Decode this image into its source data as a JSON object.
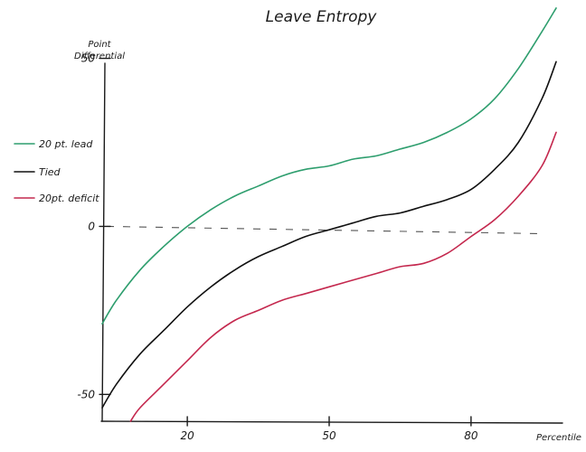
{
  "chart_data": {
    "type": "line",
    "title": "Leave Entropy",
    "xlabel": "Percentile",
    "ylabel": "Point Differential",
    "ylabel_lines": [
      "Point",
      "Differential"
    ],
    "xlim": [
      2,
      98
    ],
    "ylim": [
      -58,
      62
    ],
    "x_ticks": [
      20,
      50,
      80
    ],
    "y_ticks": [
      50,
      0,
      -50
    ],
    "zero_reference": {
      "value": 0,
      "style": "dashed"
    },
    "legend_position": "left",
    "series": [
      {
        "name": "20 pt. lead",
        "color": "#2e9e6e",
        "x": [
          2,
          5,
          10,
          15,
          20,
          25,
          30,
          35,
          40,
          45,
          50,
          55,
          60,
          65,
          70,
          75,
          80,
          85,
          90,
          95,
          98
        ],
        "y": [
          -29,
          -22,
          -13,
          -6,
          0,
          5,
          9,
          12,
          15,
          17,
          18,
          20,
          21,
          23,
          25,
          28,
          32,
          38,
          47,
          58,
          65
        ]
      },
      {
        "name": "Tied",
        "color": "#111111",
        "x": [
          2,
          5,
          10,
          15,
          20,
          25,
          30,
          35,
          40,
          45,
          50,
          55,
          60,
          65,
          70,
          75,
          80,
          85,
          90,
          95,
          98
        ],
        "y": [
          -54,
          -47,
          -38,
          -31,
          -24,
          -18,
          -13,
          -9,
          -6,
          -3,
          -1,
          1,
          3,
          4,
          6,
          8,
          11,
          17,
          25,
          38,
          49
        ]
      },
      {
        "name": "20pt. deficit",
        "color": "#c4284e",
        "x": [
          8,
          10,
          15,
          20,
          25,
          30,
          35,
          40,
          45,
          50,
          55,
          60,
          65,
          70,
          75,
          80,
          85,
          90,
          95,
          98
        ],
        "y": [
          -58,
          -54,
          -47,
          -40,
          -33,
          -28,
          -25,
          -22,
          -20,
          -18,
          -16,
          -14,
          -12,
          -11,
          -8,
          -3,
          2,
          9,
          18,
          28
        ]
      }
    ]
  }
}
